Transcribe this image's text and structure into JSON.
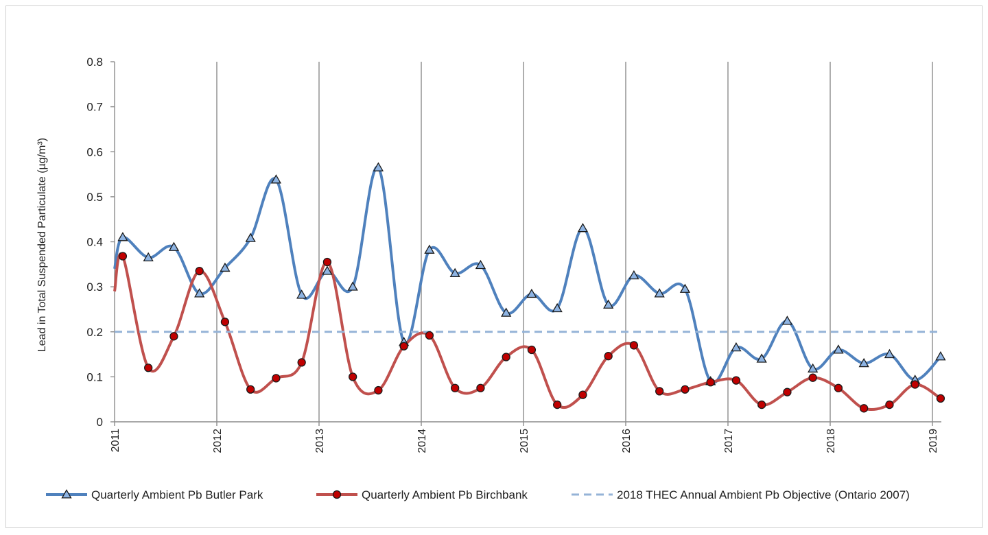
{
  "chart_data": {
    "type": "line",
    "title": "",
    "xlabel": "",
    "ylabel": "Lead in Total Suspended Particulate  (µg/m³)",
    "ylim": [
      0,
      0.8
    ],
    "yticks": [
      "0",
      "0.1",
      "0.2",
      "0.3",
      "0.4",
      "0.5",
      "0.6",
      "0.7",
      "0.8"
    ],
    "xlim": [
      2011,
      2019.1
    ],
    "xticks": [
      "2011",
      "2012",
      "2013",
      "2014",
      "2015",
      "2016",
      "2017",
      "2018",
      "2019"
    ],
    "grid": "vertical lines at each year",
    "legend_position": "bottom",
    "series": [
      {
        "name": "Quarterly Ambient Pb Butler Park",
        "color": "#4f81bd",
        "marker": "triangle",
        "points": [
          [
            2011.0,
            0.34
          ],
          [
            2011.08,
            0.41
          ],
          [
            2011.33,
            0.365
          ],
          [
            2011.58,
            0.388
          ],
          [
            2011.83,
            0.285
          ],
          [
            2012.08,
            0.342
          ],
          [
            2012.33,
            0.408
          ],
          [
            2012.58,
            0.538
          ],
          [
            2012.83,
            0.282
          ],
          [
            2013.08,
            0.335
          ],
          [
            2013.33,
            0.3
          ],
          [
            2013.58,
            0.565
          ],
          [
            2013.83,
            0.177
          ],
          [
            2014.08,
            0.382
          ],
          [
            2014.33,
            0.33
          ],
          [
            2014.58,
            0.348
          ],
          [
            2014.83,
            0.242
          ],
          [
            2015.08,
            0.284
          ],
          [
            2015.33,
            0.252
          ],
          [
            2015.58,
            0.43
          ],
          [
            2015.83,
            0.26
          ],
          [
            2016.08,
            0.325
          ],
          [
            2016.33,
            0.285
          ],
          [
            2016.58,
            0.295
          ],
          [
            2016.83,
            0.09
          ],
          [
            2017.08,
            0.165
          ],
          [
            2017.33,
            0.14
          ],
          [
            2017.58,
            0.224
          ],
          [
            2017.83,
            0.118
          ],
          [
            2018.08,
            0.16
          ],
          [
            2018.33,
            0.13
          ],
          [
            2018.58,
            0.15
          ],
          [
            2018.83,
            0.093
          ],
          [
            2019.08,
            0.145
          ]
        ]
      },
      {
        "name": "Quarterly Ambient Pb Birchbank",
        "color": "#c0504d",
        "marker": "circle",
        "points": [
          [
            2011.0,
            0.29
          ],
          [
            2011.08,
            0.368
          ],
          [
            2011.33,
            0.12
          ],
          [
            2011.58,
            0.19
          ],
          [
            2011.83,
            0.335
          ],
          [
            2012.08,
            0.222
          ],
          [
            2012.33,
            0.072
          ],
          [
            2012.58,
            0.097
          ],
          [
            2012.83,
            0.132
          ],
          [
            2013.08,
            0.355
          ],
          [
            2013.33,
            0.1
          ],
          [
            2013.58,
            0.07
          ],
          [
            2013.83,
            0.168
          ],
          [
            2014.08,
            0.192
          ],
          [
            2014.33,
            0.075
          ],
          [
            2014.58,
            0.075
          ],
          [
            2014.83,
            0.144
          ],
          [
            2015.08,
            0.16
          ],
          [
            2015.33,
            0.038
          ],
          [
            2015.58,
            0.06
          ],
          [
            2015.83,
            0.146
          ],
          [
            2016.08,
            0.17
          ],
          [
            2016.33,
            0.068
          ],
          [
            2016.58,
            0.072
          ],
          [
            2016.83,
            0.088
          ],
          [
            2017.08,
            0.092
          ],
          [
            2017.33,
            0.038
          ],
          [
            2017.58,
            0.066
          ],
          [
            2017.83,
            0.098
          ],
          [
            2018.08,
            0.075
          ],
          [
            2018.33,
            0.03
          ],
          [
            2018.58,
            0.038
          ],
          [
            2018.83,
            0.083
          ],
          [
            2019.08,
            0.052
          ]
        ]
      },
      {
        "name": "2018 THEC Annual Ambient Pb Objective (Ontario 2007)",
        "color": "#95b3d7",
        "marker": "none",
        "style": "dashed",
        "value": 0.2
      }
    ]
  }
}
